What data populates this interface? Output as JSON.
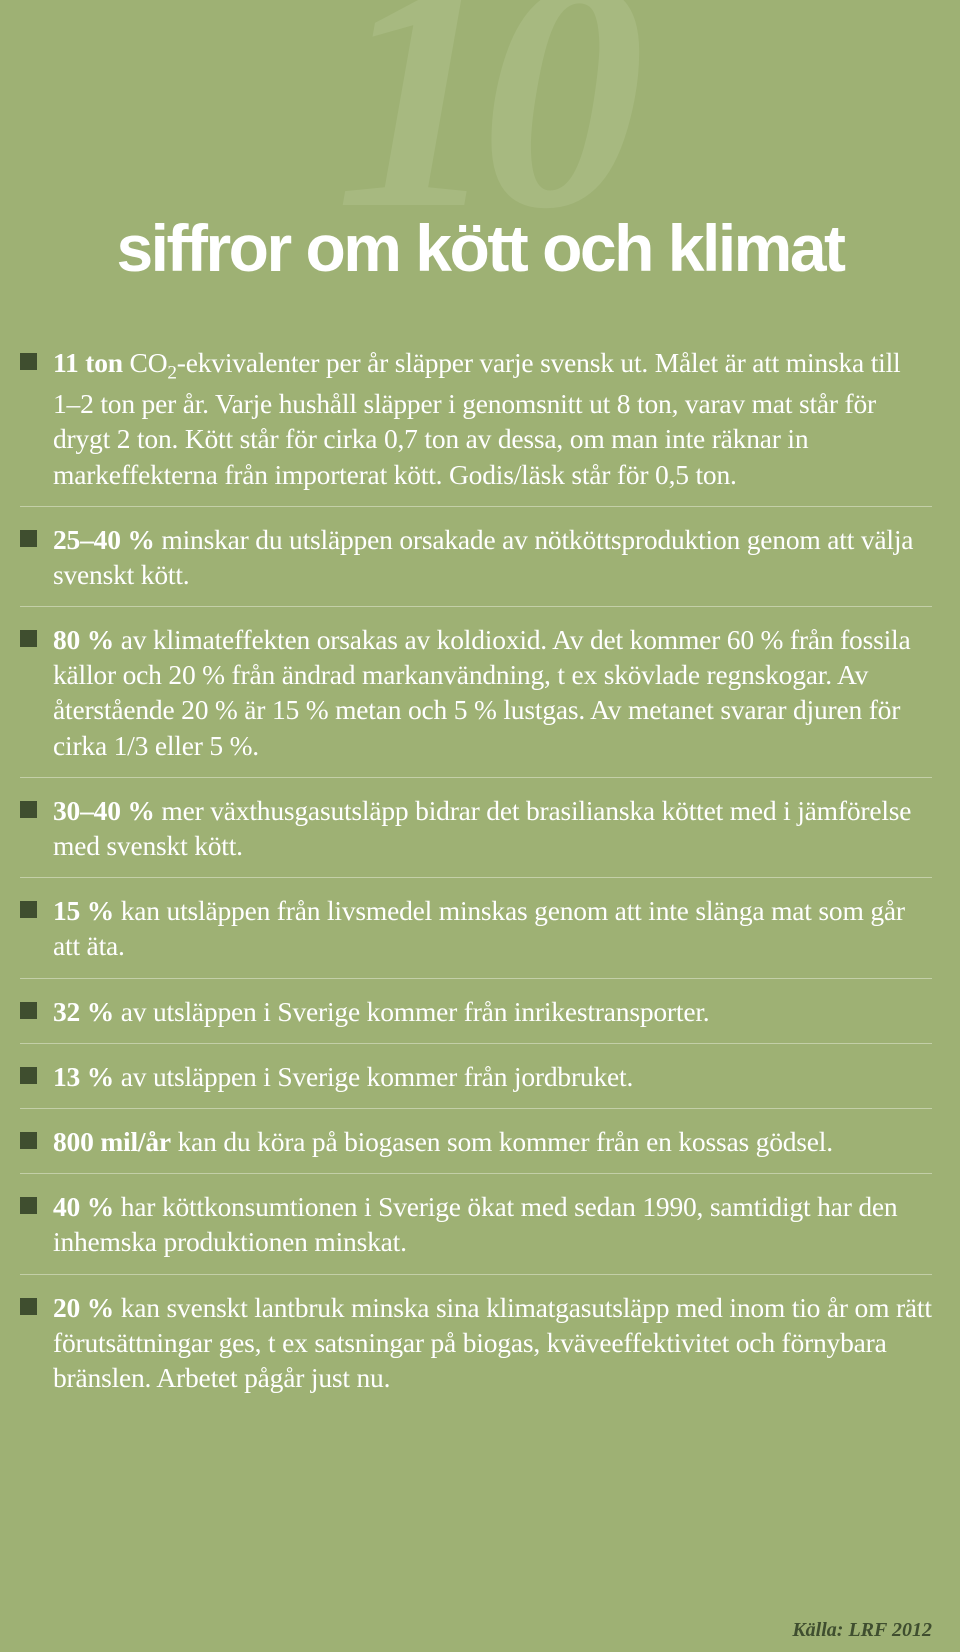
{
  "big_number": "10",
  "title": "siffror om kött och klimat",
  "background_color": "#9eb174",
  "big_number_color": "#a7b980",
  "title_color": "#ffffff",
  "bullet_color": "#3f4e2f",
  "text_color": "#ffffff",
  "divider_color": "#c3cfa8",
  "source_color": "#3f4e2f",
  "items": [
    {
      "bold": "11 ton",
      "rest_html": " CO<sub>2</sub>-ekvivalenter per år släpper varje svensk ut. Målet är att minska till 1–2 ton per år. Varje hushåll släpper i genomsnitt ut 8 ton, varav mat står för drygt 2 ton. Kött står för cirka 0,7 ton av dessa, om man inte räknar in markeffekterna från importerat kött. Godis/läsk står för 0,5 ton."
    },
    {
      "bold": "25–40 %",
      "rest_html": " minskar du utsläppen orsakade av nötköttsproduktion genom att välja svenskt kött."
    },
    {
      "bold": "80 %",
      "rest_html": " av klimateffekten orsakas av koldioxid. Av det kommer 60 % från fossila källor och 20 % från ändrad markanvändning, t ex skövlade regnskogar. Av återstående 20 % är 15 % metan och 5 % lustgas. Av metanet svarar djuren för cirka 1/3 eller 5 %."
    },
    {
      "bold": "30–40 %",
      "rest_html": " mer växthusgasutsläpp bidrar det brasilianska köttet med i jämförelse med svenskt kött."
    },
    {
      "bold": "15 %",
      "rest_html": " kan utsläppen från livsmedel minskas genom att inte slänga mat som går att äta."
    },
    {
      "bold": "32 %",
      "rest_html": " av utsläppen i Sverige kommer från inrikestransporter."
    },
    {
      "bold": "13 %",
      "rest_html": " av utsläppen i Sverige kommer från jordbruket."
    },
    {
      "bold": "800 mil/år",
      "rest_html": " kan du köra på biogasen som kommer från en kossas gödsel."
    },
    {
      "bold": "40 %",
      "rest_html": " har köttkonsumtionen i Sverige ökat med sedan 1990, samtidigt har den inhemska produktionen minskat."
    },
    {
      "bold": "20 %",
      "rest_html": " kan svenskt lantbruk minska sina klimatgasutsläpp med inom tio år om rätt förutsättningar ges, t ex satsningar på biogas, kväveeffektivitet och förnybara bränslen. Arbetet pågår just nu."
    }
  ],
  "source": "Källa: LRF 2012"
}
